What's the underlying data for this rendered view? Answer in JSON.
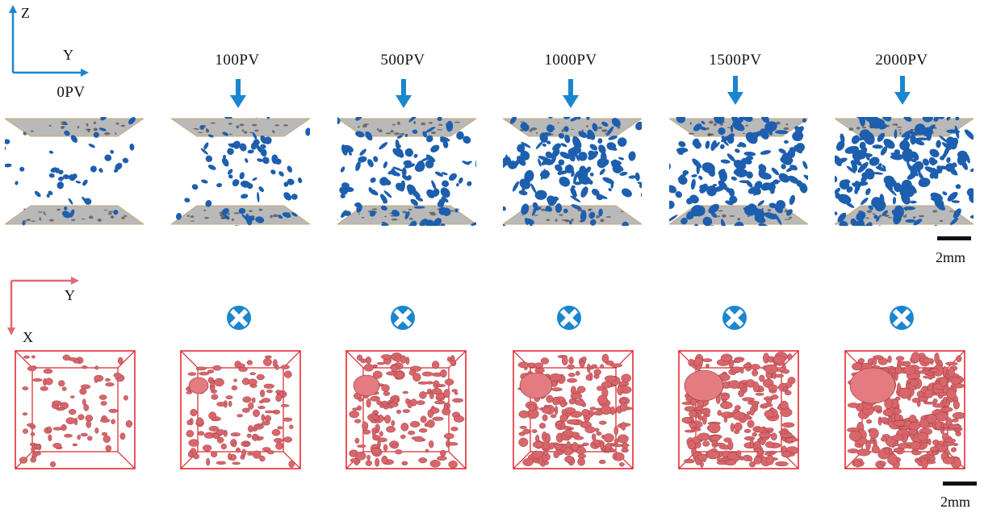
{
  "axes_top": {
    "z": "Z",
    "y": "Y",
    "color": "#1a86d0"
  },
  "axes_bottom": {
    "y": "Y",
    "x": "X",
    "color": "#e06a74"
  },
  "stages": [
    "0PV",
    "100PV",
    "500PV",
    "1000PV",
    "1500PV",
    "2000PV"
  ],
  "scale_bar_top": "2mm",
  "scale_bar_bottom": "2mm",
  "colors": {
    "pore_top": "#1d5fae",
    "pore_bottom": "#d9666b",
    "box": "#e01e26",
    "arrow": "#1a86d0",
    "slab": "#b9b9b9"
  },
  "icons": {
    "flow_arrow": "down-arrow-icon",
    "into_page": "into-page-cross-icon"
  }
}
